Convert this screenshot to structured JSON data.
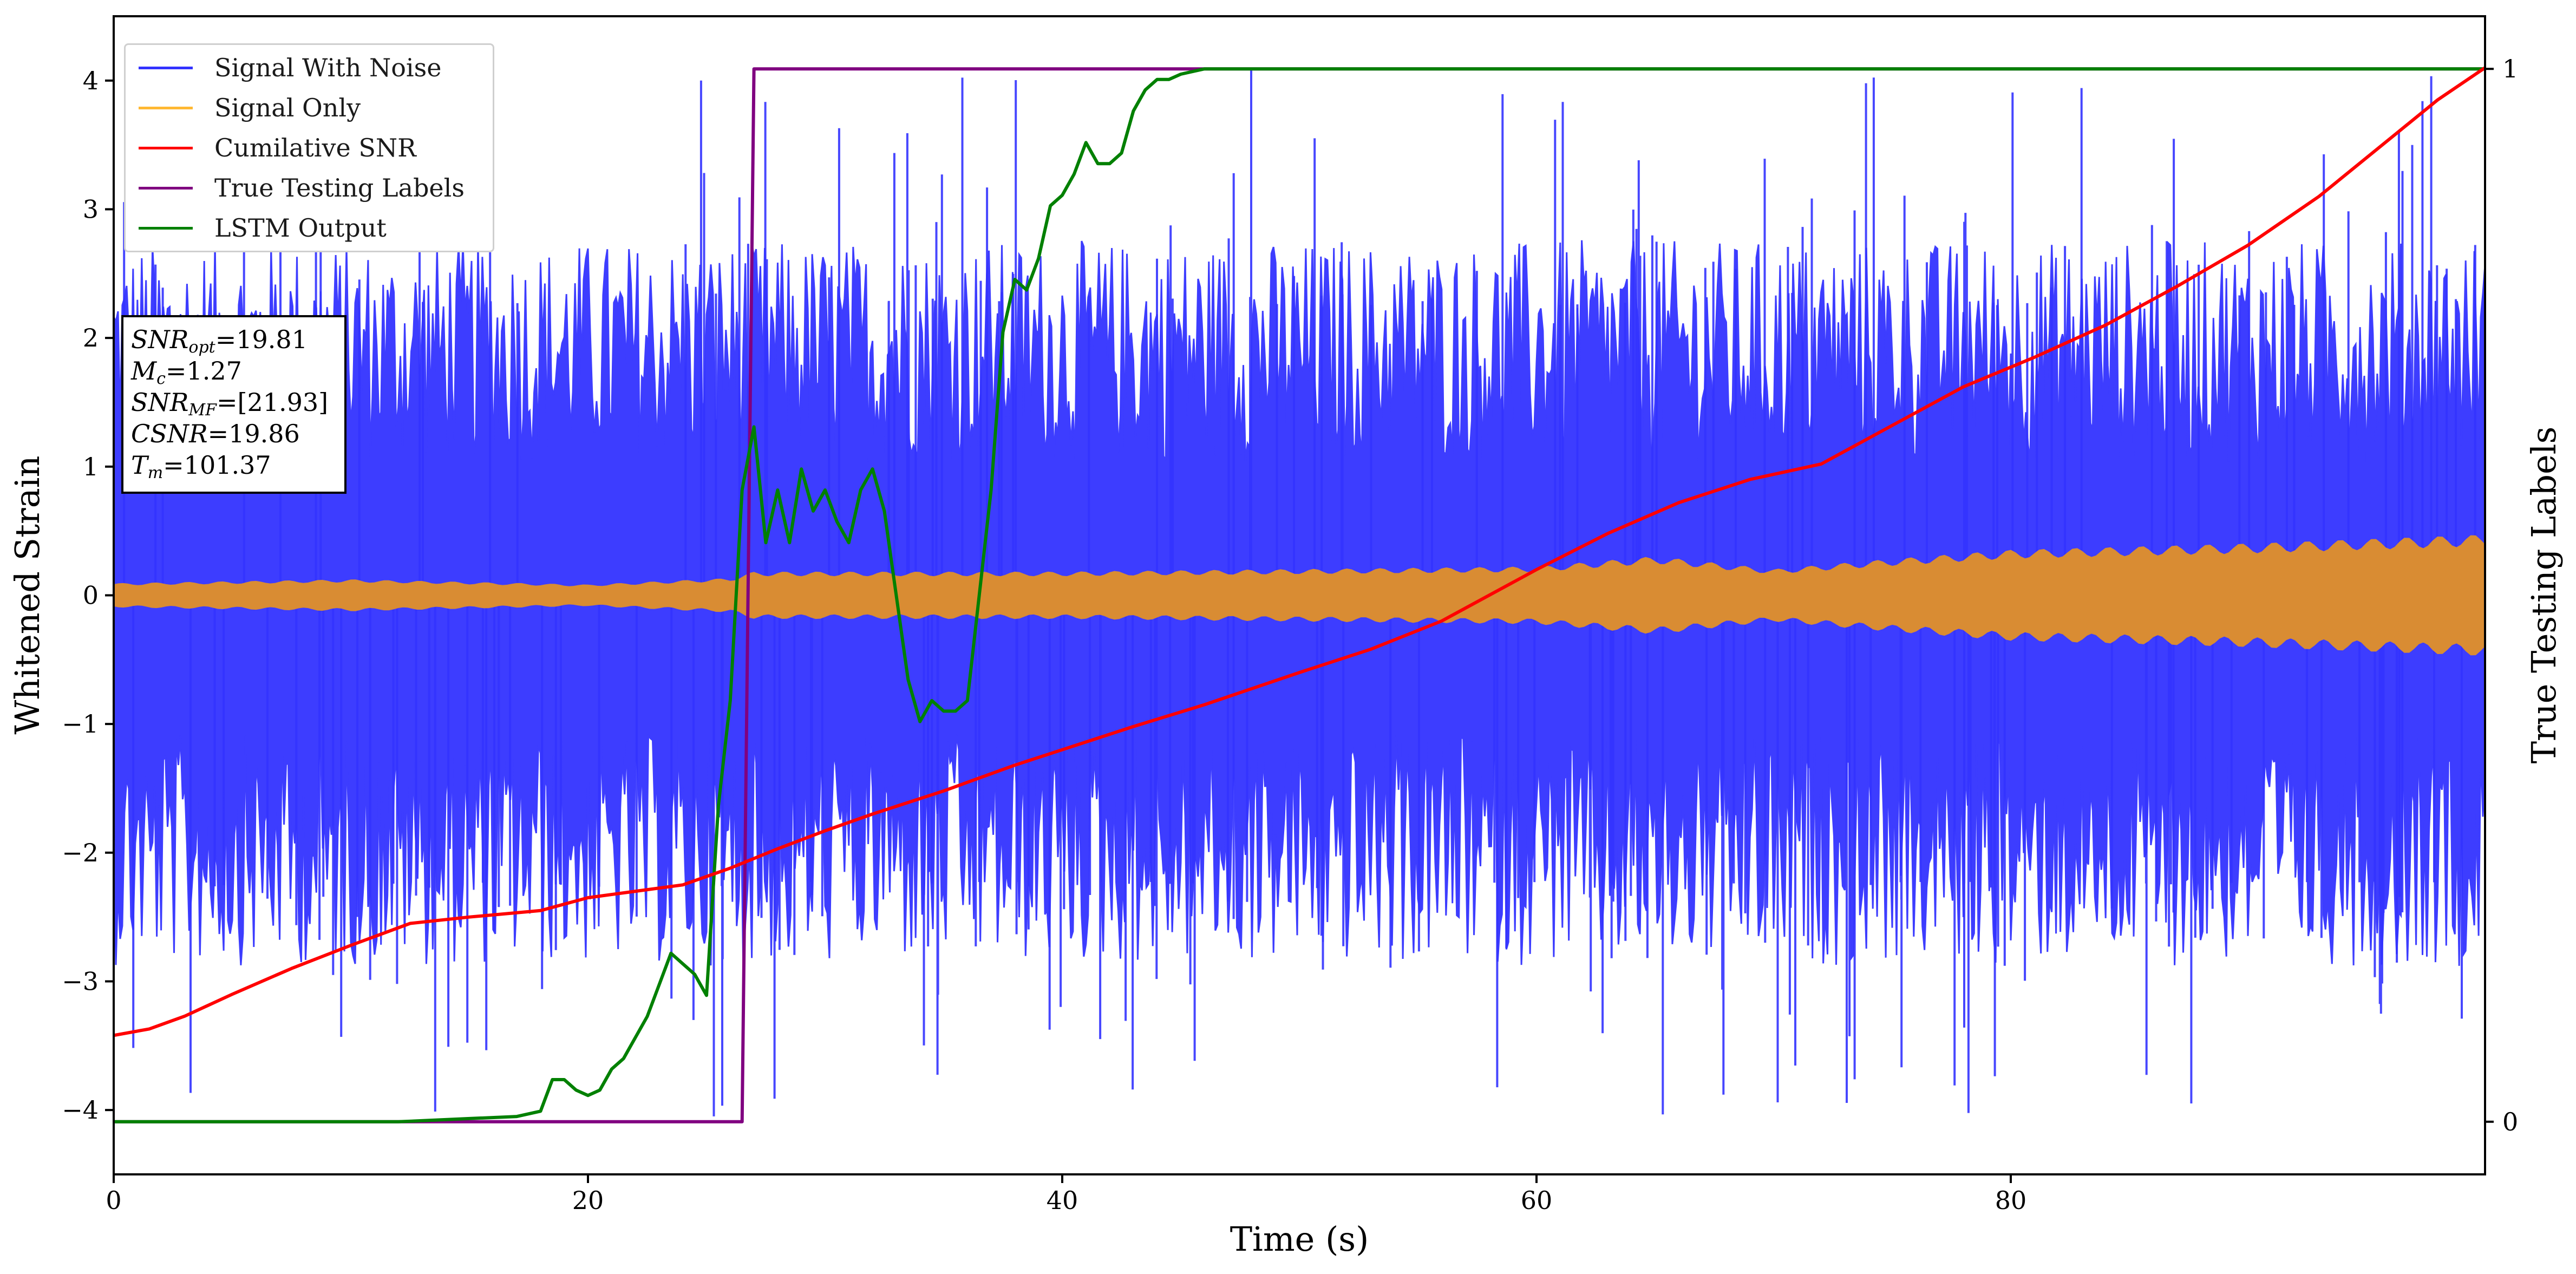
{
  "chart_data": {
    "type": "line",
    "xlabel": "Time (s)",
    "ylabel": "Whitened Strain",
    "y2label": "True Testing Labels",
    "xlim": [
      0,
      100
    ],
    "ylim": [
      -4.5,
      4.5
    ],
    "y2lim": [
      -0.05,
      1.05
    ],
    "xticks": [
      0,
      20,
      40,
      60,
      80
    ],
    "xtick_labels": [
      "0",
      "20",
      "40",
      "60",
      "80"
    ],
    "yticks": [
      -4,
      -3,
      -2,
      -1,
      0,
      1,
      2,
      3,
      4
    ],
    "ytick_labels": [
      "−4",
      "−3",
      "−2",
      "−1",
      "0",
      "1",
      "2",
      "3",
      "4"
    ],
    "y2ticks": [
      0,
      1
    ],
    "y2tick_labels": [
      "0",
      "1"
    ],
    "grid": false,
    "legend_position": "top-left",
    "legend": [
      {
        "label": "Signal With Noise",
        "color": "#3333ff"
      },
      {
        "label": "Signal Only",
        "color": "#ffb833"
      },
      {
        "label": "Cumilative SNR",
        "color": "#ff0000"
      },
      {
        "label": "True Testing Labels",
        "color": "#800080"
      },
      {
        "label": "LSTM Output",
        "color": "#008000"
      }
    ],
    "series": [
      {
        "name": "Cumilative SNR",
        "axis": "left",
        "color": "#ff0000",
        "x": [
          0,
          1.5,
          3,
          5,
          7.5,
          10,
          12.5,
          15,
          18,
          20,
          22,
          24,
          26,
          28,
          30,
          32,
          35,
          38,
          40,
          43,
          46,
          50,
          53,
          56,
          60,
          63,
          66,
          69,
          72,
          75,
          78,
          81,
          84,
          87,
          90,
          93,
          96,
          98,
          100
        ],
        "values": [
          -3.42,
          -3.37,
          -3.27,
          -3.1,
          -2.9,
          -2.72,
          -2.55,
          -2.5,
          -2.45,
          -2.35,
          -2.3,
          -2.25,
          -2.12,
          -1.97,
          -1.83,
          -1.7,
          -1.52,
          -1.32,
          -1.2,
          -1.02,
          -0.85,
          -0.6,
          -0.42,
          -0.2,
          0.2,
          0.48,
          0.72,
          0.9,
          1.02,
          1.32,
          1.62,
          1.85,
          2.1,
          2.4,
          2.72,
          3.1,
          3.55,
          3.85,
          4.1
        ]
      },
      {
        "name": "True Testing Labels",
        "axis": "right",
        "color": "#800080",
        "x": [
          0,
          26.5,
          27.0,
          100
        ],
        "values": [
          0,
          0,
          1,
          1
        ]
      },
      {
        "name": "LSTM Output",
        "axis": "right",
        "color": "#008000",
        "x": [
          0,
          12,
          15,
          17,
          18,
          18.5,
          19,
          19.5,
          20,
          20.5,
          21,
          21.5,
          22,
          22.5,
          23,
          23.5,
          24,
          24.5,
          25,
          25.5,
          26,
          26.5,
          27,
          27.5,
          28,
          28.5,
          29,
          29.5,
          30,
          30.5,
          31,
          31.5,
          32,
          32.5,
          33,
          33.5,
          34,
          34.5,
          35,
          35.5,
          36,
          36.5,
          37,
          37.5,
          38,
          38.5,
          39,
          39.5,
          40,
          40.5,
          41,
          41.5,
          42,
          42.5,
          43,
          43.5,
          44,
          44.5,
          45,
          46,
          47,
          48,
          49,
          50,
          52,
          54,
          56,
          58,
          100
        ],
        "values": [
          0,
          0,
          0.003,
          0.005,
          0.01,
          0.04,
          0.04,
          0.03,
          0.025,
          0.03,
          0.05,
          0.06,
          0.08,
          0.1,
          0.13,
          0.16,
          0.15,
          0.14,
          0.12,
          0.3,
          0.4,
          0.6,
          0.66,
          0.55,
          0.6,
          0.55,
          0.62,
          0.58,
          0.6,
          0.57,
          0.55,
          0.6,
          0.62,
          0.58,
          0.5,
          0.42,
          0.38,
          0.4,
          0.39,
          0.39,
          0.4,
          0.5,
          0.6,
          0.75,
          0.8,
          0.79,
          0.82,
          0.87,
          0.88,
          0.9,
          0.93,
          0.91,
          0.91,
          0.92,
          0.96,
          0.98,
          0.99,
          0.99,
          0.995,
          1,
          1,
          1,
          1,
          1,
          1,
          1,
          1,
          1,
          1
        ]
      },
      {
        "name": "Signal Only",
        "axis": "left",
        "color": "#ffb833",
        "x": [
          0,
          10,
          20,
          26,
          27,
          40,
          50,
          60,
          65,
          70,
          75,
          80,
          90,
          100
        ],
        "amplitude": [
          0.09,
          0.12,
          0.08,
          0.13,
          0.18,
          0.18,
          0.2,
          0.22,
          0.3,
          0.2,
          0.28,
          0.35,
          0.4,
          0.47
        ]
      },
      {
        "name": "Signal With Noise",
        "axis": "left",
        "color": "#3333ff",
        "x_range": [
          0,
          100
        ],
        "envelope_upper_typical": 2.3,
        "envelope_lower_typical": -2.4,
        "peak_max": 4.1,
        "peak_min": -4.05
      }
    ],
    "annotation": [
      {
        "label": "SNR",
        "sub": "opt",
        "value": "=19.81"
      },
      {
        "label": "M",
        "sub": "c",
        "value": "=1.27"
      },
      {
        "label": "SNR",
        "sub": "MF",
        "value": "=[21.93]"
      },
      {
        "label": "CSNR",
        "sub": "",
        "value": "=19.86"
      },
      {
        "label": "T",
        "sub": "m",
        "value": "=101.37"
      }
    ]
  }
}
